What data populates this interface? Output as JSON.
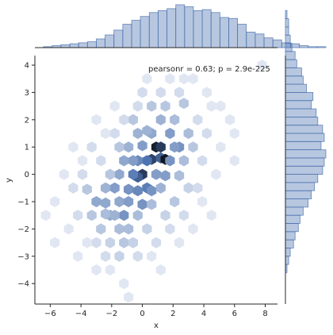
{
  "chart_data": {
    "type": "hexbin-joint",
    "xlabel": "x",
    "ylabel": "y",
    "annotation": "pearsonr = 0.63; p = 2.9e-225",
    "xlim": [
      -7,
      8.8
    ],
    "ylim": [
      -4.75,
      4.35
    ],
    "xticks": [
      -6,
      -4,
      -2,
      0,
      2,
      4,
      6,
      8
    ],
    "yticks": [
      -4,
      -3,
      -2,
      -1,
      0,
      1,
      2,
      3,
      4
    ],
    "grid": false,
    "colormap": [
      "#eef1f8",
      "#12161f"
    ],
    "hex_cell_width": 0.63,
    "hexbins": [
      {
        "x": 0.0,
        "y": 0.0,
        "count": 18
      },
      {
        "x": 0.6,
        "y": 0.55,
        "count": 17
      },
      {
        "x": 1.2,
        "y": 0.6,
        "count": 14
      },
      {
        "x": 1.5,
        "y": 0.55,
        "count": 22
      },
      {
        "x": 0.9,
        "y": 1.0,
        "count": 21
      },
      {
        "x": 1.2,
        "y": 1.0,
        "count": 18
      },
      {
        "x": 0.3,
        "y": 0.5,
        "count": 12
      },
      {
        "x": -0.3,
        "y": 0.5,
        "count": 10
      },
      {
        "x": -0.3,
        "y": -0.1,
        "count": 14
      },
      {
        "x": 0.3,
        "y": -0.5,
        "count": 11
      },
      {
        "x": 0.6,
        "y": -0.6,
        "count": 9
      },
      {
        "x": -0.6,
        "y": 0.0,
        "count": 11
      },
      {
        "x": -0.9,
        "y": -0.55,
        "count": 9
      },
      {
        "x": -0.3,
        "y": -0.6,
        "count": 10
      },
      {
        "x": 0.0,
        "y": -1.1,
        "count": 9
      },
      {
        "x": 0.9,
        "y": 0.0,
        "count": 8
      },
      {
        "x": 1.5,
        "y": -0.05,
        "count": 8
      },
      {
        "x": 1.8,
        "y": 0.5,
        "count": 9
      },
      {
        "x": 2.4,
        "y": 1.0,
        "count": 9
      },
      {
        "x": 2.1,
        "y": 1.0,
        "count": 8
      },
      {
        "x": 1.8,
        "y": 1.5,
        "count": 8
      },
      {
        "x": 0.6,
        "y": 1.5,
        "count": 7
      },
      {
        "x": 0.0,
        "y": 1.05,
        "count": 8
      },
      {
        "x": -0.6,
        "y": 0.5,
        "count": 8
      },
      {
        "x": -1.2,
        "y": 0.5,
        "count": 7
      },
      {
        "x": -1.5,
        "y": 0.0,
        "count": 7
      },
      {
        "x": -1.8,
        "y": -0.5,
        "count": 8
      },
      {
        "x": -1.5,
        "y": -1.0,
        "count": 7
      },
      {
        "x": -0.9,
        "y": -1.0,
        "count": 8
      },
      {
        "x": -1.2,
        "y": -1.5,
        "count": 9
      },
      {
        "x": -2.4,
        "y": -1.05,
        "count": 7
      },
      {
        "x": -3.0,
        "y": -1.0,
        "count": 7
      },
      {
        "x": -2.4,
        "y": -0.5,
        "count": 6
      },
      {
        "x": -2.1,
        "y": -1.5,
        "count": 7
      },
      {
        "x": -2.4,
        "y": -1.45,
        "count": 5
      },
      {
        "x": -1.8,
        "y": -1.5,
        "count": 6
      },
      {
        "x": -0.9,
        "y": 1.0,
        "count": 6
      },
      {
        "x": -0.3,
        "y": 1.5,
        "count": 6
      },
      {
        "x": 0.3,
        "y": 1.6,
        "count": 6
      },
      {
        "x": 1.2,
        "y": 2.0,
        "count": 6
      },
      {
        "x": 2.1,
        "y": 2.0,
        "count": 5
      },
      {
        "x": 3.0,
        "y": 1.5,
        "count": 5
      },
      {
        "x": 2.7,
        "y": 0.5,
        "count": 5
      },
      {
        "x": 2.4,
        "y": -0.05,
        "count": 5
      },
      {
        "x": 1.2,
        "y": -0.5,
        "count": 6
      },
      {
        "x": 0.6,
        "y": -1.1,
        "count": 5
      },
      {
        "x": -0.3,
        "y": -1.5,
        "count": 5
      },
      {
        "x": -0.9,
        "y": -2.0,
        "count": 5
      },
      {
        "x": -1.5,
        "y": -2.0,
        "count": 5
      },
      {
        "x": -2.7,
        "y": -2.0,
        "count": 4
      },
      {
        "x": -3.3,
        "y": -1.5,
        "count": 4
      },
      {
        "x": -3.6,
        "y": -0.55,
        "count": 4
      },
      {
        "x": -2.1,
        "y": 0.0,
        "count": 4
      },
      {
        "x": -1.5,
        "y": 1.0,
        "count": 4
      },
      {
        "x": -0.6,
        "y": 2.0,
        "count": 4
      },
      {
        "x": 0.6,
        "y": 2.5,
        "count": 4
      },
      {
        "x": 1.5,
        "y": 2.5,
        "count": 4
      },
      {
        "x": 2.7,
        "y": 2.6,
        "count": 4
      },
      {
        "x": 3.3,
        "y": 1.0,
        "count": 4
      },
      {
        "x": 3.0,
        "y": -0.5,
        "count": 3
      },
      {
        "x": 2.1,
        "y": -1.0,
        "count": 4
      },
      {
        "x": 1.5,
        "y": -1.5,
        "count": 3
      },
      {
        "x": 0.3,
        "y": -2.0,
        "count": 3
      },
      {
        "x": -1.2,
        "y": -2.5,
        "count": 4
      },
      {
        "x": -2.1,
        "y": -2.5,
        "count": 3
      },
      {
        "x": -3.0,
        "y": -2.5,
        "count": 2
      },
      {
        "x": -1.5,
        "y": -3.0,
        "count": 3
      },
      {
        "x": -0.6,
        "y": -2.5,
        "count": 3
      },
      {
        "x": -4.2,
        "y": -1.5,
        "count": 2
      },
      {
        "x": -4.5,
        "y": -0.5,
        "count": 2
      },
      {
        "x": -3.9,
        "y": 0.0,
        "count": 2
      },
      {
        "x": -2.7,
        "y": 0.5,
        "count": 2
      },
      {
        "x": -3.3,
        "y": 1.0,
        "count": 2
      },
      {
        "x": -1.8,
        "y": 1.5,
        "count": 2
      },
      {
        "x": -1.2,
        "y": 2.0,
        "count": 2
      },
      {
        "x": -0.3,
        "y": 2.5,
        "count": 2
      },
      {
        "x": 0.0,
        "y": 3.0,
        "count": 2
      },
      {
        "x": 1.2,
        "y": 3.0,
        "count": 2
      },
      {
        "x": 2.4,
        "y": 3.0,
        "count": 2
      },
      {
        "x": 3.6,
        "y": 2.0,
        "count": 2
      },
      {
        "x": 4.2,
        "y": 1.5,
        "count": 2
      },
      {
        "x": 3.9,
        "y": 0.5,
        "count": 2
      },
      {
        "x": 3.6,
        "y": -0.5,
        "count": 2
      },
      {
        "x": 2.7,
        "y": -1.5,
        "count": 2
      },
      {
        "x": 1.8,
        "y": -2.0,
        "count": 2
      },
      {
        "x": 0.9,
        "y": -2.5,
        "count": 2
      },
      {
        "x": -0.3,
        "y": -3.0,
        "count": 2
      },
      {
        "x": -2.4,
        "y": -3.0,
        "count": 2
      },
      {
        "x": -3.6,
        "y": -2.5,
        "count": 1
      },
      {
        "x": -4.8,
        "y": -2.0,
        "count": 1
      },
      {
        "x": -5.7,
        "y": -1.0,
        "count": 1
      },
      {
        "x": -3.0,
        "y": -3.5,
        "count": 1
      },
      {
        "x": -1.2,
        "y": -4.0,
        "count": 1
      },
      {
        "x": -0.9,
        "y": -4.5,
        "count": 1
      },
      {
        "x": 1.2,
        "y": -3.5,
        "count": 1
      },
      {
        "x": 2.4,
        "y": -2.5,
        "count": 1
      },
      {
        "x": 3.9,
        "y": -1.0,
        "count": 1
      },
      {
        "x": 4.8,
        "y": 0.0,
        "count": 1
      },
      {
        "x": 5.1,
        "y": 1.0,
        "count": 1
      },
      {
        "x": 5.7,
        "y": 2.0,
        "count": 1
      },
      {
        "x": 5.1,
        "y": 2.5,
        "count": 1
      },
      {
        "x": 4.2,
        "y": 3.0,
        "count": 1
      },
      {
        "x": 3.3,
        "y": 3.5,
        "count": 1
      },
      {
        "x": 1.8,
        "y": 3.5,
        "count": 1
      },
      {
        "x": 0.3,
        "y": 3.5,
        "count": 1
      },
      {
        "x": -1.8,
        "y": 2.5,
        "count": 1
      },
      {
        "x": -3.0,
        "y": 2.0,
        "count": 1
      },
      {
        "x": -4.5,
        "y": 1.0,
        "count": 1
      },
      {
        "x": -6.3,
        "y": -1.5,
        "count": 1
      },
      {
        "x": -5.7,
        "y": -2.5,
        "count": 1
      },
      {
        "x": -4.2,
        "y": -3.0,
        "count": 1
      },
      {
        "x": 6.0,
        "y": 1.5,
        "count": 1
      },
      {
        "x": 7.8,
        "y": 4.0,
        "count": 1
      },
      {
        "x": 6.0,
        "y": 0.5,
        "count": 1
      },
      {
        "x": 4.5,
        "y": -1.5,
        "count": 1
      },
      {
        "x": 3.3,
        "y": -2.0,
        "count": 1
      },
      {
        "x": 0.6,
        "y": -3.0,
        "count": 1
      },
      {
        "x": -2.1,
        "y": -3.5,
        "count": 1
      },
      {
        "x": -3.9,
        "y": 0.5,
        "count": 1
      },
      {
        "x": -5.1,
        "y": 0.0,
        "count": 1
      },
      {
        "x": -2.4,
        "y": 1.5,
        "count": 1
      },
      {
        "x": 2.7,
        "y": 3.5,
        "count": 1
      },
      {
        "x": 4.5,
        "y": 2.5,
        "count": 1
      }
    ],
    "x_marginal": {
      "bin_start": -6.45,
      "bin_width": 0.575,
      "counts": [
        1,
        2,
        3,
        4,
        5,
        6,
        9,
        13,
        18,
        24,
        28,
        32,
        36,
        38,
        40,
        44,
        42,
        38,
        39,
        36,
        31,
        30,
        24,
        16,
        14,
        10,
        8,
        5,
        4,
        2,
        1,
        1
      ],
      "color": "#4c72b0"
    },
    "y_marginal": {
      "bin_start": -3.6,
      "bin_width": 0.3,
      "counts": [
        1,
        2,
        3,
        5,
        6,
        8,
        9,
        11,
        14,
        16,
        18,
        20,
        23,
        24,
        25,
        22,
        24,
        23,
        20,
        19,
        16,
        17,
        13,
        11,
        10,
        7,
        6,
        4,
        3,
        2,
        2,
        1
      ],
      "color": "#4c72b0"
    }
  }
}
